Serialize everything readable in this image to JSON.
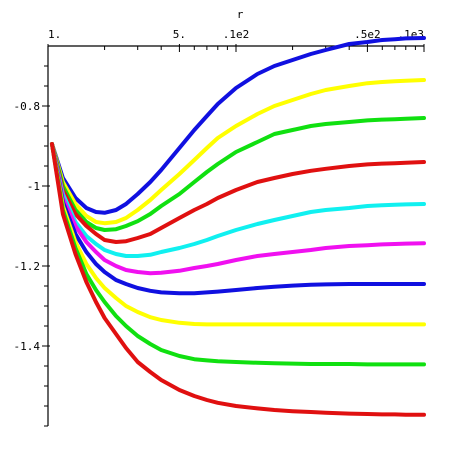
{
  "chart_data": {
    "type": "line",
    "title": "",
    "xlabel": "r",
    "ylabel": "",
    "x_scale": "log",
    "xlim": [
      1,
      100
    ],
    "ylim": [
      -1.6,
      -0.65
    ],
    "grid": false,
    "legend": "none",
    "x_ticks": [
      {
        "value": 1,
        "label": "1."
      },
      {
        "value": 5,
        "label": "5."
      },
      {
        "value": 10,
        "label": ".1e2"
      },
      {
        "value": 50,
        "label": ".5e2"
      },
      {
        "value": 100,
        "label": ".1e3"
      }
    ],
    "x_minor_ticks": [
      2,
      3,
      4,
      6,
      7,
      8,
      9,
      20,
      30,
      40,
      60,
      70,
      80,
      90
    ],
    "y_ticks": [
      {
        "value": -0.8,
        "label": "-0.8"
      },
      {
        "value": -1.0,
        "label": "-1"
      },
      {
        "value": -1.2,
        "label": "-1.2"
      },
      {
        "value": -1.4,
        "label": "-1.4"
      }
    ],
    "y_minor_ticks": [
      -0.7,
      -0.75,
      -0.85,
      -0.9,
      -0.95,
      -1.05,
      -1.1,
      -1.15,
      -1.25,
      -1.3,
      -1.35,
      -1.45,
      -1.5,
      -1.55,
      -1.6
    ],
    "series": [
      {
        "color": "#1010e0",
        "x": [
          1.05,
          1.2,
          1.4,
          1.6,
          1.8,
          2,
          2.3,
          2.6,
          3,
          3.5,
          4,
          5,
          6,
          7,
          8,
          10,
          13,
          16,
          20,
          25,
          30,
          40,
          50,
          60,
          70,
          80,
          100
        ],
        "y": [
          -0.895,
          -0.98,
          -1.03,
          -1.055,
          -1.065,
          -1.067,
          -1.06,
          -1.045,
          -1.02,
          -0.99,
          -0.96,
          -0.905,
          -0.86,
          -0.825,
          -0.795,
          -0.755,
          -0.72,
          -0.7,
          -0.685,
          -0.67,
          -0.66,
          -0.645,
          -0.64,
          -0.635,
          -0.633,
          -0.631,
          -0.63
        ]
      },
      {
        "color": "#ffff00",
        "x": [
          1.05,
          1.2,
          1.4,
          1.6,
          1.8,
          2,
          2.3,
          2.6,
          3,
          3.5,
          4,
          5,
          6,
          7,
          8,
          10,
          13,
          16,
          20,
          25,
          30,
          40,
          50,
          60,
          70,
          80,
          100
        ],
        "y": [
          -0.895,
          -0.99,
          -1.045,
          -1.075,
          -1.09,
          -1.093,
          -1.09,
          -1.08,
          -1.06,
          -1.035,
          -1.01,
          -0.97,
          -0.935,
          -0.905,
          -0.88,
          -0.85,
          -0.82,
          -0.8,
          -0.785,
          -0.77,
          -0.76,
          -0.75,
          -0.743,
          -0.74,
          -0.738,
          -0.737,
          -0.735
        ]
      },
      {
        "color": "#10e010",
        "x": [
          1.05,
          1.2,
          1.4,
          1.6,
          1.8,
          2,
          2.3,
          2.6,
          3,
          3.5,
          4,
          5,
          6,
          7,
          8,
          10,
          13,
          16,
          20,
          25,
          30,
          40,
          50,
          60,
          70,
          80,
          100
        ],
        "y": [
          -0.895,
          -1.0,
          -1.06,
          -1.09,
          -1.105,
          -1.11,
          -1.108,
          -1.1,
          -1.088,
          -1.07,
          -1.05,
          -1.02,
          -0.99,
          -0.965,
          -0.945,
          -0.915,
          -0.89,
          -0.87,
          -0.86,
          -0.85,
          -0.845,
          -0.84,
          -0.836,
          -0.834,
          -0.833,
          -0.832,
          -0.83
        ]
      },
      {
        "color": "#e01010",
        "x": [
          1.05,
          1.2,
          1.4,
          1.6,
          1.8,
          2,
          2.3,
          2.6,
          3,
          3.5,
          4,
          5,
          6,
          7,
          8,
          10,
          13,
          16,
          20,
          25,
          30,
          40,
          50,
          60,
          70,
          80,
          100
        ],
        "y": [
          -0.895,
          -1.01,
          -1.07,
          -1.1,
          -1.12,
          -1.135,
          -1.14,
          -1.138,
          -1.13,
          -1.12,
          -1.105,
          -1.08,
          -1.06,
          -1.045,
          -1.03,
          -1.01,
          -0.99,
          -0.98,
          -0.97,
          -0.962,
          -0.957,
          -0.95,
          -0.946,
          -0.944,
          -0.943,
          -0.942,
          -0.94
        ]
      },
      {
        "color": "#10f0f0",
        "x": [
          1.05,
          1.2,
          1.4,
          1.6,
          1.8,
          2,
          2.3,
          2.6,
          3,
          3.5,
          4,
          5,
          6,
          7,
          8,
          10,
          13,
          16,
          20,
          25,
          30,
          40,
          50,
          60,
          70,
          80,
          100
        ],
        "y": [
          -0.895,
          -1.02,
          -1.09,
          -1.125,
          -1.145,
          -1.16,
          -1.17,
          -1.175,
          -1.175,
          -1.172,
          -1.165,
          -1.155,
          -1.145,
          -1.135,
          -1.125,
          -1.11,
          -1.095,
          -1.085,
          -1.075,
          -1.065,
          -1.06,
          -1.055,
          -1.05,
          -1.048,
          -1.047,
          -1.046,
          -1.045
        ]
      },
      {
        "color": "#f010f0",
        "x": [
          1.05,
          1.2,
          1.4,
          1.6,
          1.8,
          2,
          2.3,
          2.6,
          3,
          3.5,
          4,
          5,
          6,
          7,
          8,
          10,
          13,
          16,
          20,
          25,
          30,
          40,
          50,
          60,
          70,
          80,
          100
        ],
        "y": [
          -0.895,
          -1.03,
          -1.1,
          -1.14,
          -1.165,
          -1.185,
          -1.2,
          -1.21,
          -1.215,
          -1.218,
          -1.217,
          -1.212,
          -1.205,
          -1.2,
          -1.195,
          -1.185,
          -1.175,
          -1.17,
          -1.165,
          -1.16,
          -1.155,
          -1.15,
          -1.148,
          -1.146,
          -1.145,
          -1.144,
          -1.143
        ]
      },
      {
        "color": "#1010e0",
        "x": [
          1.05,
          1.2,
          1.4,
          1.6,
          1.8,
          2,
          2.3,
          2.6,
          3,
          3.5,
          4,
          5,
          6,
          7,
          8,
          10,
          13,
          16,
          20,
          25,
          30,
          40,
          50,
          60,
          70,
          80,
          100
        ],
        "y": [
          -0.895,
          -1.04,
          -1.12,
          -1.165,
          -1.195,
          -1.215,
          -1.235,
          -1.245,
          -1.255,
          -1.262,
          -1.266,
          -1.268,
          -1.268,
          -1.266,
          -1.264,
          -1.26,
          -1.255,
          -1.252,
          -1.249,
          -1.247,
          -1.246,
          -1.245,
          -1.245,
          -1.245,
          -1.245,
          -1.245,
          -1.245
        ]
      },
      {
        "color": "#ffff00",
        "x": [
          1.05,
          1.2,
          1.4,
          1.6,
          1.8,
          2,
          2.3,
          2.6,
          3,
          3.5,
          4,
          5,
          6,
          7,
          8,
          10,
          13,
          16,
          20,
          25,
          30,
          40,
          50,
          60,
          70,
          80,
          100
        ],
        "y": [
          -0.895,
          -1.05,
          -1.14,
          -1.195,
          -1.23,
          -1.255,
          -1.28,
          -1.3,
          -1.315,
          -1.328,
          -1.335,
          -1.342,
          -1.345,
          -1.346,
          -1.346,
          -1.346,
          -1.346,
          -1.346,
          -1.346,
          -1.346,
          -1.346,
          -1.346,
          -1.346,
          -1.346,
          -1.346,
          -1.346,
          -1.346
        ]
      },
      {
        "color": "#10e010",
        "x": [
          1.05,
          1.2,
          1.4,
          1.6,
          1.8,
          2,
          2.3,
          2.6,
          3,
          3.5,
          4,
          5,
          6,
          7,
          8,
          10,
          13,
          16,
          20,
          25,
          30,
          40,
          50,
          60,
          70,
          80,
          100
        ],
        "y": [
          -0.895,
          -1.06,
          -1.155,
          -1.22,
          -1.26,
          -1.29,
          -1.325,
          -1.35,
          -1.375,
          -1.395,
          -1.41,
          -1.425,
          -1.433,
          -1.436,
          -1.438,
          -1.44,
          -1.442,
          -1.443,
          -1.444,
          -1.445,
          -1.445,
          -1.445,
          -1.446,
          -1.446,
          -1.446,
          -1.446,
          -1.446
        ]
      },
      {
        "color": "#e01010",
        "x": [
          1.05,
          1.2,
          1.4,
          1.6,
          1.8,
          2,
          2.3,
          2.6,
          3,
          3.5,
          4,
          5,
          6,
          7,
          8,
          10,
          13,
          16,
          20,
          25,
          30,
          40,
          50,
          60,
          70,
          80,
          100
        ],
        "y": [
          -0.895,
          -1.07,
          -1.17,
          -1.24,
          -1.29,
          -1.33,
          -1.37,
          -1.405,
          -1.44,
          -1.465,
          -1.485,
          -1.51,
          -1.525,
          -1.535,
          -1.542,
          -1.55,
          -1.556,
          -1.56,
          -1.563,
          -1.565,
          -1.567,
          -1.569,
          -1.57,
          -1.571,
          -1.571,
          -1.572,
          -1.572
        ]
      }
    ]
  }
}
